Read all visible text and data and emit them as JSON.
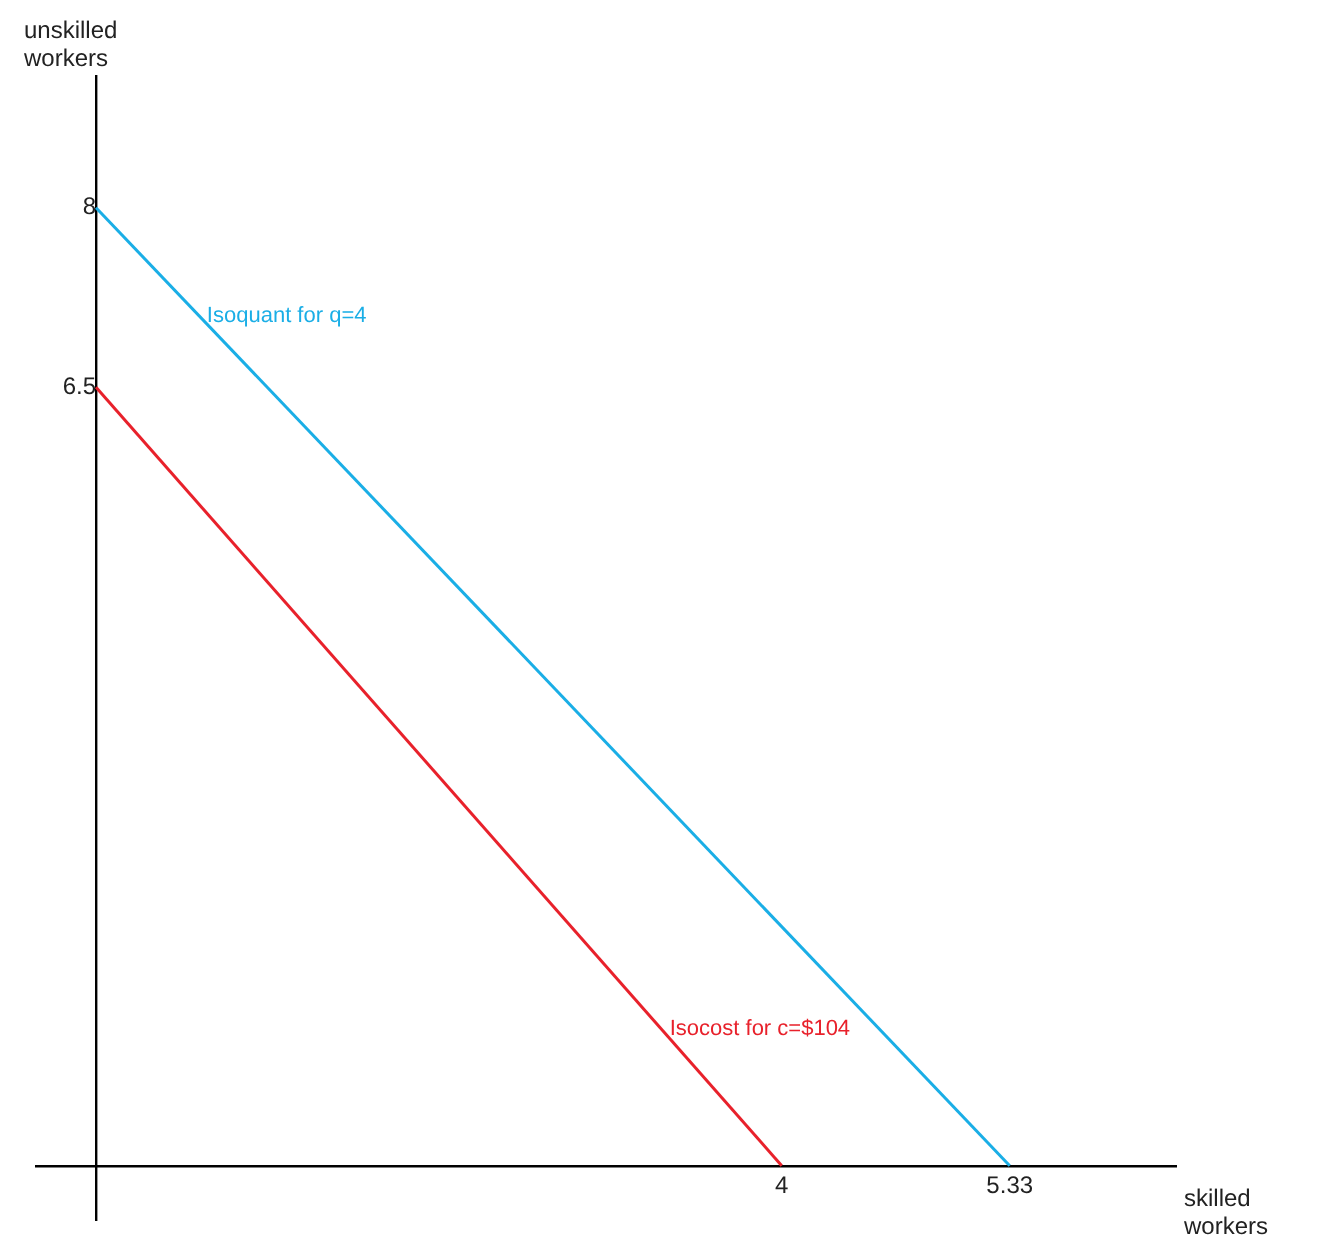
{
  "chart_data": {
    "type": "line",
    "xlabel": "skilled workers",
    "ylabel": "unskilled workers",
    "xlim": [
      -0.35,
      6.3
    ],
    "ylim": [
      -0.45,
      9.1
    ],
    "xticks": [
      4,
      5.33
    ],
    "yticks": [
      6.5,
      8
    ],
    "grid": false,
    "legend": false,
    "marker": "none",
    "line_style": "solid",
    "series": [
      {
        "color": "#1aaee6",
        "x": [
          0,
          5.33
        ],
        "values": [
          8,
          0
        ]
      },
      {
        "color": "#e8212b",
        "x": [
          0,
          4
        ],
        "values": [
          6.5,
          0
        ]
      }
    ],
    "annotations": [
      {
        "text": "Isoquant for q=4",
        "x": 0.6,
        "y": 7.1
      },
      {
        "text": "Isocost for c=$104",
        "x": 3.3,
        "y": 1.14
      }
    ]
  }
}
